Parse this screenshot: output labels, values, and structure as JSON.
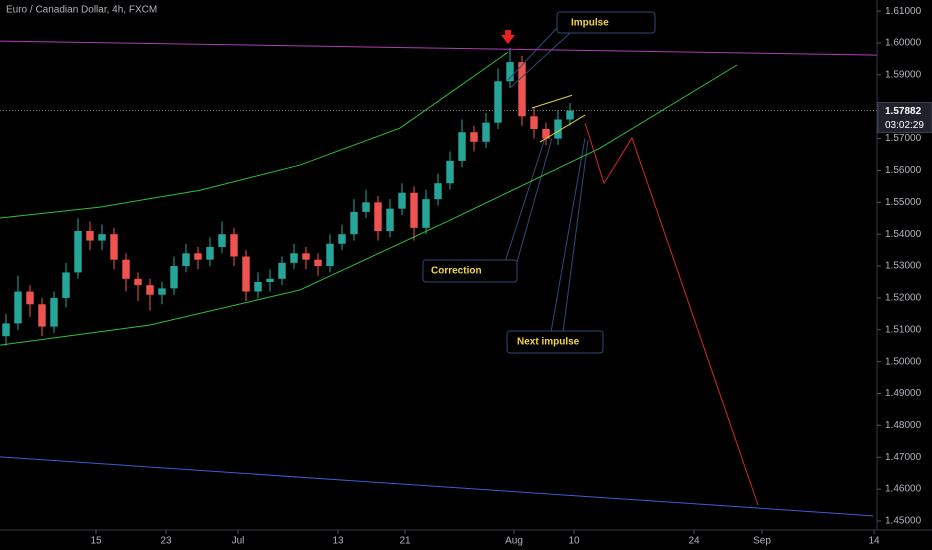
{
  "chart_data": {
    "type": "candlestick",
    "title": "Euro / Canadian Dollar, 4h, FXCM",
    "xlim": [
      0,
      438.5
    ],
    "ylim": [
      1.4503,
      1.6135
    ],
    "xticks": [
      {
        "value": 48,
        "label": "15"
      },
      {
        "value": 83,
        "label": "23"
      },
      {
        "value": 119,
        "label": "Jul"
      },
      {
        "value": 169,
        "label": "13"
      },
      {
        "value": 202.5,
        "label": "21"
      },
      {
        "value": 257,
        "label": "Aug"
      },
      {
        "value": 287,
        "label": "10"
      },
      {
        "value": 347,
        "label": "24"
      },
      {
        "value": 381,
        "label": "Sep"
      },
      {
        "value": 437,
        "label": "14"
      }
    ],
    "yticks": [
      {
        "value": 1.45,
        "label": "1.45000"
      },
      {
        "value": 1.46,
        "label": "1.46000"
      },
      {
        "value": 1.47,
        "label": "1.47000"
      },
      {
        "value": 1.48,
        "label": "1.48000"
      },
      {
        "value": 1.49,
        "label": "1.49000"
      },
      {
        "value": 1.5,
        "label": "1.50000"
      },
      {
        "value": 1.51,
        "label": "1.51000"
      },
      {
        "value": 1.52,
        "label": "1.52000"
      },
      {
        "value": 1.53,
        "label": "1.53000"
      },
      {
        "value": 1.54,
        "label": "1.54000"
      },
      {
        "value": 1.55,
        "label": "1.55000"
      },
      {
        "value": 1.56,
        "label": "1.56000"
      },
      {
        "value": 1.57,
        "label": "1.57000"
      },
      {
        "value": 1.58,
        "label": "1.58000"
      },
      {
        "value": 1.59,
        "label": "1.59000"
      },
      {
        "value": 1.6,
        "label": "1.60000"
      },
      {
        "value": 1.61,
        "label": "1.61000"
      }
    ],
    "up_color": "#26a69a",
    "down_color": "#ef5350",
    "candles": {
      "x": [
        3,
        9,
        15,
        21,
        27,
        33,
        39,
        45,
        51,
        57,
        63,
        69,
        75,
        81,
        87,
        93,
        99,
        105,
        111,
        117,
        123,
        129,
        135,
        141,
        147,
        153,
        159,
        165,
        171,
        177,
        183,
        189,
        195,
        201,
        207,
        213,
        219,
        225,
        231,
        237,
        243,
        249,
        255,
        261,
        267,
        273,
        279,
        285
      ],
      "open": [
        1.508,
        1.512,
        1.522,
        1.518,
        1.511,
        1.52,
        1.528,
        1.541,
        1.538,
        1.54,
        1.532,
        1.526,
        1.524,
        1.521,
        1.523,
        1.53,
        1.534,
        1.532,
        1.536,
        1.54,
        1.533,
        1.522,
        1.525,
        1.526,
        1.531,
        1.534,
        1.532,
        1.53,
        1.537,
        1.54,
        1.547,
        1.55,
        1.541,
        1.548,
        1.553,
        1.542,
        1.551,
        1.556,
        1.563,
        1.572,
        1.569,
        1.575,
        1.588,
        1.594,
        1.577,
        1.573,
        1.57,
        1.576
      ],
      "high": [
        1.515,
        1.527,
        1.524,
        1.52,
        1.522,
        1.531,
        1.545,
        1.544,
        1.543,
        1.542,
        1.534,
        1.528,
        1.526,
        1.525,
        1.533,
        1.537,
        1.536,
        1.539,
        1.544,
        1.542,
        1.535,
        1.528,
        1.529,
        1.533,
        1.537,
        1.536,
        1.534,
        1.54,
        1.543,
        1.551,
        1.554,
        1.552,
        1.551,
        1.556,
        1.555,
        1.554,
        1.559,
        1.566,
        1.576,
        1.574,
        1.578,
        1.592,
        1.5985,
        1.596,
        1.58,
        1.575,
        1.579,
        1.5812
      ],
      "low": [
        1.505,
        1.51,
        1.514,
        1.508,
        1.509,
        1.517,
        1.526,
        1.535,
        1.535,
        1.529,
        1.522,
        1.519,
        1.516,
        1.518,
        1.521,
        1.528,
        1.529,
        1.53,
        1.534,
        1.53,
        1.519,
        1.52,
        1.522,
        1.524,
        1.529,
        1.529,
        1.527,
        1.528,
        1.535,
        1.538,
        1.545,
        1.538,
        1.539,
        1.546,
        1.538,
        1.54,
        1.549,
        1.554,
        1.561,
        1.566,
        1.567,
        1.573,
        1.586,
        1.574,
        1.57,
        1.568,
        1.568,
        1.574
      ],
      "close": [
        1.512,
        1.522,
        1.518,
        1.511,
        1.52,
        1.528,
        1.541,
        1.538,
        1.54,
        1.532,
        1.526,
        1.524,
        1.521,
        1.523,
        1.53,
        1.534,
        1.532,
        1.536,
        1.54,
        1.533,
        1.522,
        1.525,
        1.526,
        1.531,
        1.534,
        1.532,
        1.53,
        1.537,
        1.54,
        1.547,
        1.55,
        1.541,
        1.548,
        1.553,
        1.542,
        1.551,
        1.556,
        1.563,
        1.572,
        1.569,
        1.575,
        1.588,
        1.594,
        1.577,
        1.573,
        1.57,
        1.576,
        1.57882
      ]
    },
    "last_price": 1.57882,
    "countdown": "03:02:29",
    "drawings": [
      {
        "color": "#b03cb8",
        "x": [
          0,
          438.5
        ],
        "y": [
          1.6006,
          1.5962
        ]
      },
      {
        "color": "#2fbf3a",
        "x": [
          0,
          50,
          100,
          150,
          200,
          254
        ],
        "y": [
          1.5451,
          1.5485,
          1.5538,
          1.5617,
          1.5733,
          1.5971
        ]
      },
      {
        "color": "#2fbf3a",
        "x": [
          0,
          75,
          150,
          225,
          300,
          368.5
        ],
        "y": [
          1.5052,
          1.5115,
          1.5225,
          1.5444,
          1.567,
          1.5931
        ]
      },
      {
        "color": "#3d5bd6",
        "x": [
          0,
          436.5
        ],
        "y": [
          1.4701,
          1.4516
        ]
      },
      {
        "color": "#e0d040",
        "x": [
          266,
          286
        ],
        "y": [
          1.5796,
          1.5836
        ]
      },
      {
        "color": "#e0d040",
        "x": [
          270,
          292.5
        ],
        "y": [
          1.5689,
          1.5774
        ]
      },
      {
        "color": "#d22a2a",
        "x": [
          292.5,
          302,
          316,
          379
        ],
        "y": [
          1.5749,
          1.556,
          1.5702,
          1.455
        ]
      }
    ],
    "annotations": [
      "Impulse",
      "Correction",
      "Next impulse"
    ]
  }
}
